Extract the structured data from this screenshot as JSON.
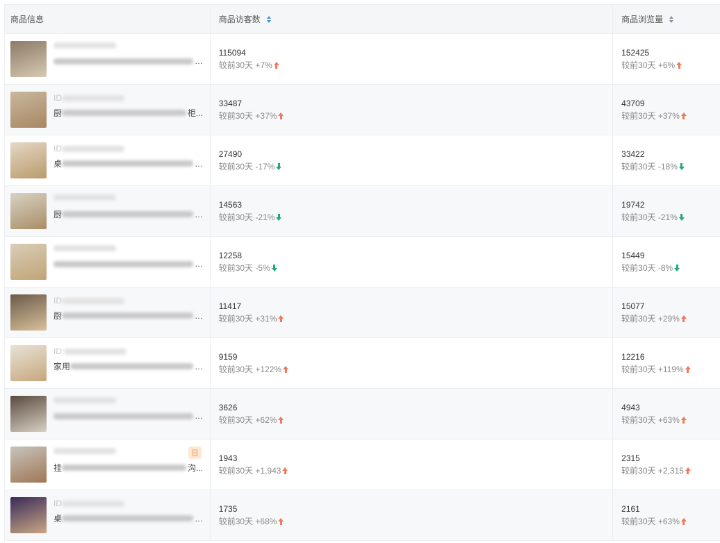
{
  "header": {
    "col_product": "商品信息",
    "col_visitors": "商品访客数",
    "col_views": "商品浏览量",
    "sort_active_color": "#4a90d9"
  },
  "compare_label": "较前30天",
  "colors": {
    "up": "#f07a5c",
    "down": "#23a87a"
  },
  "rows": [
    {
      "id_prefix": "",
      "title_prefix": "",
      "thumb": [
        "#8a7a66",
        "#d8c9b2"
      ],
      "visitors": "115094",
      "visitors_change": "+7%",
      "visitors_dir": "up",
      "views": "152425",
      "views_change": "+6%",
      "views_dir": "up"
    },
    {
      "id_prefix": "ID",
      "title_prefix": "厨",
      "title_suffix": "柜...",
      "thumb": [
        "#c9b79e",
        "#a88762"
      ],
      "visitors": "33487",
      "visitors_change": "+37%",
      "visitors_dir": "up",
      "views": "43709",
      "views_change": "+37%",
      "views_dir": "up"
    },
    {
      "id_prefix": "ID",
      "title_prefix": "桌",
      "thumb": [
        "#e4d8c4",
        "#b99a6c"
      ],
      "visitors": "27490",
      "visitors_change": "-17%",
      "visitors_dir": "down",
      "views": "33422",
      "views_change": "-18%",
      "views_dir": "down"
    },
    {
      "id_prefix": "",
      "title_prefix": "厨",
      "thumb": [
        "#d8d2c4",
        "#a98d65"
      ],
      "visitors": "14563",
      "visitors_change": "-21%",
      "visitors_dir": "down",
      "views": "19742",
      "views_change": "-21%",
      "views_dir": "down"
    },
    {
      "id_prefix": "",
      "title_prefix": "",
      "thumb": [
        "#d9cdb8",
        "#c1a476"
      ],
      "visitors": "12258",
      "visitors_change": "-5%",
      "visitors_dir": "down",
      "views": "15449",
      "views_change": "-8%",
      "views_dir": "down"
    },
    {
      "id_prefix": "ID",
      "title_prefix": "厨",
      "thumb": [
        "#6a5a48",
        "#d9c09a"
      ],
      "visitors": "11417",
      "visitors_change": "+31%",
      "visitors_dir": "up",
      "views": "15077",
      "views_change": "+29%",
      "views_dir": "up"
    },
    {
      "id_prefix": "ID:",
      "title_prefix": "家用",
      "thumb": [
        "#e8e2d8",
        "#c6a77c"
      ],
      "visitors": "9159",
      "visitors_change": "+122%",
      "visitors_dir": "up",
      "views": "12216",
      "views_change": "+119%",
      "views_dir": "up"
    },
    {
      "id_prefix": "",
      "title_prefix": "",
      "thumb": [
        "#5a4a3e",
        "#d8d0c4"
      ],
      "visitors": "3626",
      "visitors_change": "+62%",
      "visitors_dir": "up",
      "views": "4943",
      "views_change": "+63%",
      "views_dir": "up"
    },
    {
      "id_prefix": "",
      "title_prefix": "挂",
      "title_suffix": "沟...",
      "tag": "日",
      "thumb": [
        "#c8c4bc",
        "#a07656"
      ],
      "visitors": "1943",
      "visitors_change": "+1,943",
      "visitors_dir": "up",
      "views": "2315",
      "views_change": "+2,315",
      "views_dir": "up"
    },
    {
      "id_prefix": "ID",
      "title_prefix": "桌",
      "thumb": [
        "#3a2a5a",
        "#c9a883"
      ],
      "visitors": "1735",
      "visitors_change": "+68%",
      "visitors_dir": "up",
      "views": "2161",
      "views_change": "+63%",
      "views_dir": "up"
    }
  ]
}
